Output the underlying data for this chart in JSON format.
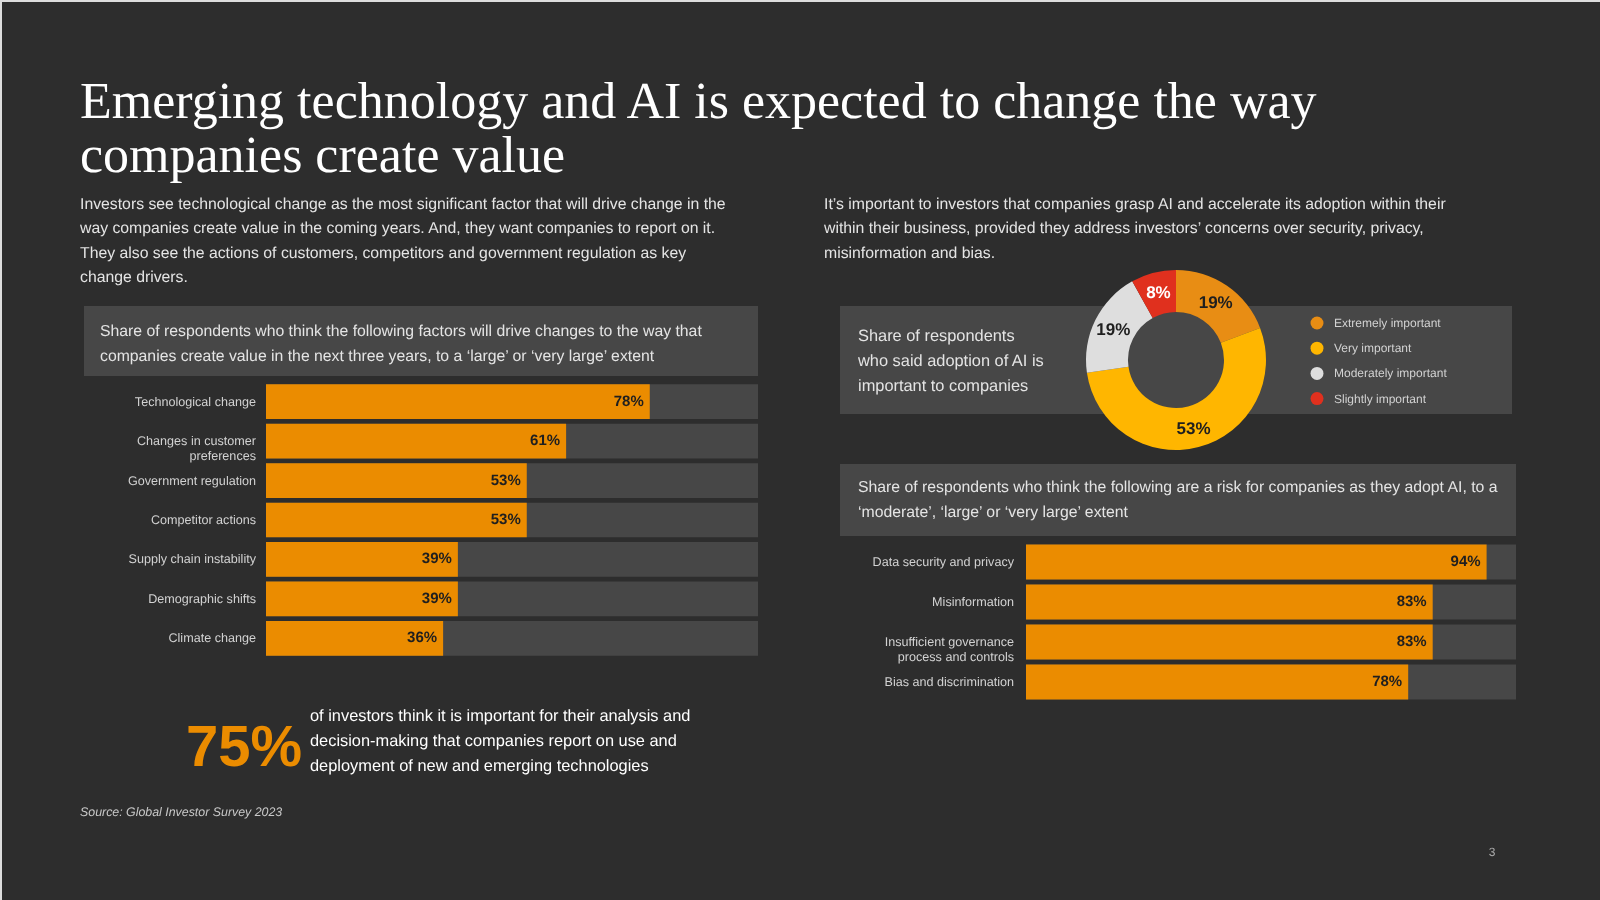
{
  "chart_data": [
    {
      "type": "other",
      "title": "Emerging technology and AI is expected to change the way companies create value",
      "annotations": [
        "Investors see technological change as the most significant factor that will drive change in the way companies create value in the coming years. And, they want companies to report on it. They also see the actions of customers, competitors and government regulation as key change drivers.",
        "It’s important to investors that companies grasp AI and accelerate its adoption within their within their business, provided they address investors’ concerns over security, privacy, misinformation and bias."
      ]
    },
    {
      "type": "bar",
      "orientation": "horizontal",
      "title": "Share of respondents who think the following factors will drive changes to the way that companies create value in the next three years, to a ‘large’ or ‘very large’ extent",
      "categories": [
        "Technological change",
        "Changes in customer preferences",
        "Government regulation",
        "Competitor actions",
        "Supply chain instability",
        "Demographic shifts",
        "Climate change"
      ],
      "values": [
        78,
        61,
        53,
        53,
        39,
        39,
        36
      ],
      "value_labels": [
        "78%",
        "61%",
        "53%",
        "53%",
        "39%",
        "39%",
        "36%"
      ],
      "color": "#eb8c00",
      "xlim": [
        0,
        100
      ],
      "tick_labels": "y"
    },
    {
      "type": "donut",
      "title": "Share of respondents who said adoption of AI is important to companies",
      "categories": [
        "Extremely important",
        "Very important",
        "Moderately important",
        "Slightly important"
      ],
      "values": [
        19,
        53,
        19,
        8
      ],
      "value_labels": [
        "19%",
        "53%",
        "19%",
        "8%"
      ],
      "colors": [
        "#e88d14",
        "#ffb600",
        "#dedede",
        "#e0301e"
      ],
      "legend": "right"
    },
    {
      "type": "bar",
      "orientation": "horizontal",
      "title": "Share of respondents who think the following are a risk for companies as they adopt AI, to a ‘moderate’, ‘large’ or ‘very large’ extent",
      "categories": [
        "Data security and privacy",
        "Misinformation",
        "Insufficient governance process and controls",
        "Bias and discrimination"
      ],
      "values": [
        94,
        83,
        83,
        78
      ],
      "value_labels": [
        "94%",
        "83%",
        "83%",
        "78%"
      ],
      "color": "#eb8c00",
      "xlim": [
        0,
        100
      ],
      "tick_labels": "y"
    },
    {
      "type": "other",
      "annotations": [
        "75%",
        "of investors think it is important for their analysis and decision-making that companies report on use and deployment of new and emerging technologies",
        "Source: Global Investor Survey 2023",
        "3"
      ]
    }
  ]
}
